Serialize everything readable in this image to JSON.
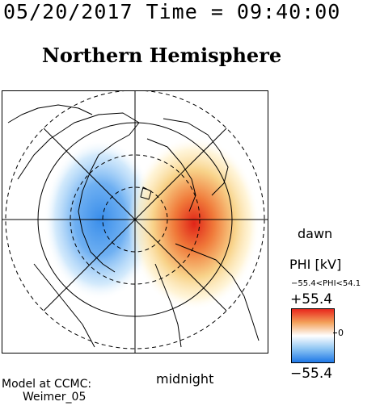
{
  "header": {
    "datetime": "05/20/2017 Time = 09:40:00"
  },
  "plot": {
    "title": "Northern Hemisphere",
    "labels": {
      "dawn": "dawn",
      "midnight": "midnight"
    }
  },
  "colorbar": {
    "title": "PHI [kV]",
    "range_text": "−55.4<PHI<54.1",
    "max_label": "+55.4",
    "min_label": "−55.4",
    "zero_label": "0",
    "colors": {
      "positive": "#e8261c",
      "neutral": "#ffffff",
      "negative": "#1e78e6"
    }
  },
  "credit": {
    "line1": "Model at CCMC:",
    "line2": "Weimer_05"
  },
  "map_data": {
    "potential_min_kv": -55.4,
    "potential_max_kv": 54.1,
    "projection": "polar, magnetic local time",
    "latitude_circles": 4,
    "meridian_lines": 4
  }
}
